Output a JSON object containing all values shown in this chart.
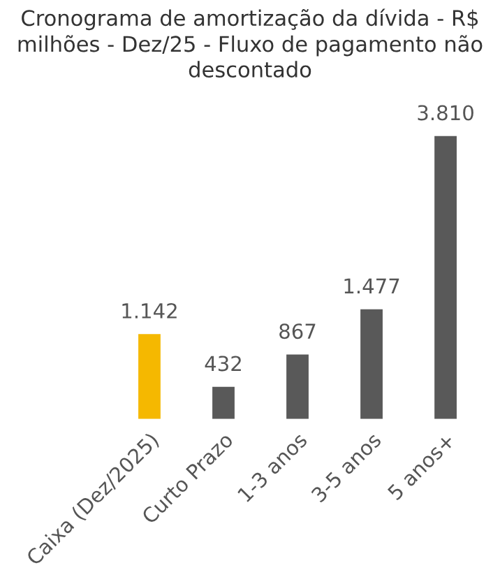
{
  "chart_data": {
    "type": "bar",
    "title": "Cronograma de amortização da dívida - R$ milhões - Dez/25 - Fluxo de pagamento não descontado",
    "categories": [
      "Caixa (Dez/2025)",
      "Curto Prazo",
      "1-3 anos",
      "3-5 anos",
      "5 anos+"
    ],
    "values": [
      1142,
      432,
      867,
      1477,
      3810
    ],
    "colors": [
      "#f5b800",
      "#595959",
      "#595959",
      "#595959",
      "#595959"
    ],
    "value_labels": [
      "1.142",
      "432",
      "867",
      "1.477",
      "3.810"
    ],
    "grid": false,
    "legend": false
  }
}
